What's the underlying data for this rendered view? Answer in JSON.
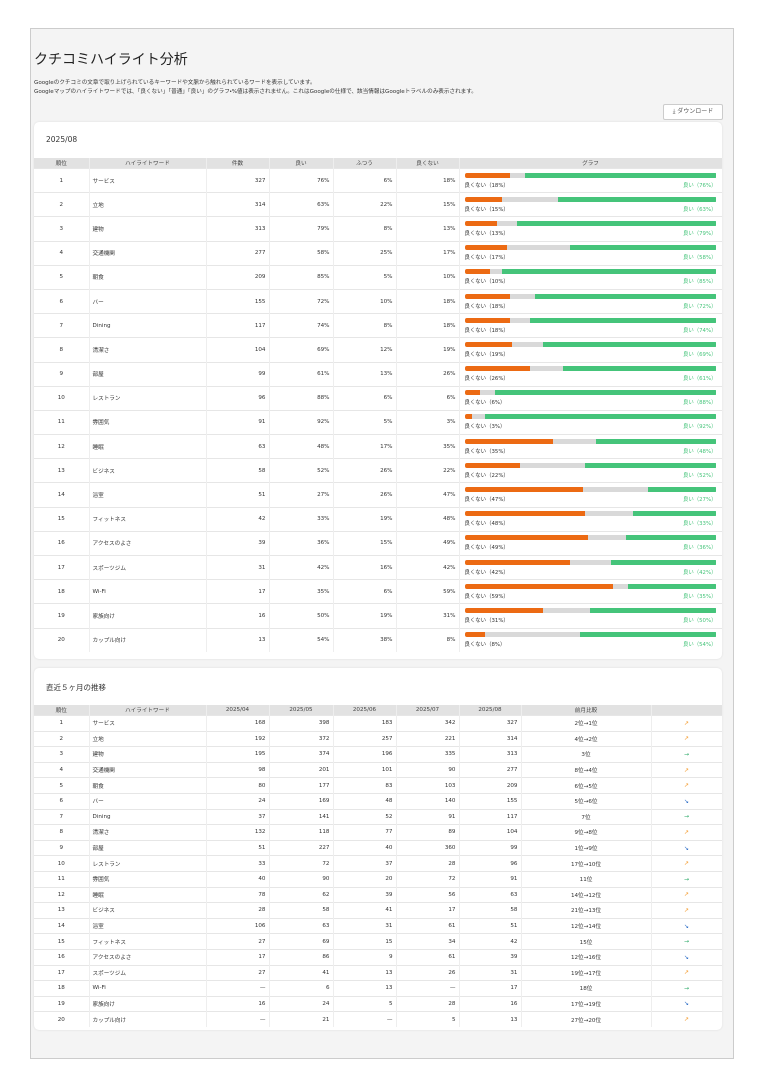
{
  "header": {
    "title": "クチコミハイライト分析",
    "desc": [
      "Googleのクチコミの文章で取り上げられているキーワードや文脈から触れられているワードを表示しています。",
      "Googleマップのハイライトワードでは、「良くない」「普通」「良い」のグラフ・%値は表示されません。これはGoogleの仕様で、該当情報はGoogleトラベルのみ表示されます。"
    ],
    "download": "ダウンロード"
  },
  "current": {
    "title": "2025/08",
    "columns": [
      "順位",
      "ハイライトワード",
      "件数",
      "良い",
      "ふつう",
      "良くない",
      "グラフ"
    ],
    "rows": [
      {
        "rank": 1,
        "word": "サービス",
        "count": 327,
        "good": {
          "value": 76,
          "label": "76%"
        },
        "normal": {
          "value": 6,
          "label": "6%"
        },
        "bad": {
          "value": 18,
          "label": "18%"
        },
        "bad_text": "良くない（18%）",
        "good_text": "良い（76%）"
      },
      {
        "rank": 2,
        "word": "立地",
        "count": 314,
        "good": {
          "value": 63,
          "label": "63%"
        },
        "normal": {
          "value": 22,
          "label": "22%"
        },
        "bad": {
          "value": 15,
          "label": "15%"
        },
        "bad_text": "良くない（15%）",
        "good_text": "良い（63%）"
      },
      {
        "rank": 3,
        "word": "建物",
        "count": 313,
        "good": {
          "value": 79,
          "label": "79%"
        },
        "normal": {
          "value": 8,
          "label": "8%"
        },
        "bad": {
          "value": 13,
          "label": "13%"
        },
        "bad_text": "良くない（13%）",
        "good_text": "良い（79%）"
      },
      {
        "rank": 4,
        "word": "交通機関",
        "count": 277,
        "good": {
          "value": 58,
          "label": "58%"
        },
        "normal": {
          "value": 25,
          "label": "25%"
        },
        "bad": {
          "value": 17,
          "label": "17%"
        },
        "bad_text": "良くない（17%）",
        "good_text": "良い（58%）"
      },
      {
        "rank": 5,
        "word": "朝食",
        "count": 209,
        "good": {
          "value": 85,
          "label": "85%"
        },
        "normal": {
          "value": 5,
          "label": "5%"
        },
        "bad": {
          "value": 10,
          "label": "10%"
        },
        "bad_text": "良くない（10%）",
        "good_text": "良い（85%）"
      },
      {
        "rank": 6,
        "word": "バー",
        "count": 155,
        "good": {
          "value": 72,
          "label": "72%"
        },
        "normal": {
          "value": 10,
          "label": "10%"
        },
        "bad": {
          "value": 18,
          "label": "18%"
        },
        "bad_text": "良くない（18%）",
        "good_text": "良い（72%）"
      },
      {
        "rank": 7,
        "word": "Dining",
        "count": 117,
        "good": {
          "value": 74,
          "label": "74%"
        },
        "normal": {
          "value": 8,
          "label": "8%"
        },
        "bad": {
          "value": 18,
          "label": "18%"
        },
        "bad_text": "良くない（18%）",
        "good_text": "良い（74%）"
      },
      {
        "rank": 8,
        "word": "清潔さ",
        "count": 104,
        "good": {
          "value": 69,
          "label": "69%"
        },
        "normal": {
          "value": 12,
          "label": "12%"
        },
        "bad": {
          "value": 19,
          "label": "19%"
        },
        "bad_text": "良くない（19%）",
        "good_text": "良い（69%）"
      },
      {
        "rank": 9,
        "word": "部屋",
        "count": 99,
        "good": {
          "value": 61,
          "label": "61%"
        },
        "normal": {
          "value": 13,
          "label": "13%"
        },
        "bad": {
          "value": 26,
          "label": "26%"
        },
        "bad_text": "良くない（26%）",
        "good_text": "良い（61%）"
      },
      {
        "rank": 10,
        "word": "レストラン",
        "count": 96,
        "good": {
          "value": 88,
          "label": "88%"
        },
        "normal": {
          "value": 6,
          "label": "6%"
        },
        "bad": {
          "value": 6,
          "label": "6%"
        },
        "bad_text": "良くない（6%）",
        "good_text": "良い（88%）"
      },
      {
        "rank": 11,
        "word": "雰囲気",
        "count": 91,
        "good": {
          "value": 92,
          "label": "92%"
        },
        "normal": {
          "value": 5,
          "label": "5%"
        },
        "bad": {
          "value": 3,
          "label": "3%"
        },
        "bad_text": "良くない（3%）",
        "good_text": "良い（92%）"
      },
      {
        "rank": 12,
        "word": "睡眠",
        "count": 63,
        "good": {
          "value": 48,
          "label": "48%"
        },
        "normal": {
          "value": 17,
          "label": "17%"
        },
        "bad": {
          "value": 35,
          "label": "35%"
        },
        "bad_text": "良くない（35%）",
        "good_text": "良い（48%）"
      },
      {
        "rank": 13,
        "word": "ビジネス",
        "count": 58,
        "good": {
          "value": 52,
          "label": "52%"
        },
        "normal": {
          "value": 26,
          "label": "26%"
        },
        "bad": {
          "value": 22,
          "label": "22%"
        },
        "bad_text": "良くない（22%）",
        "good_text": "良い（52%）"
      },
      {
        "rank": 14,
        "word": "浴室",
        "count": 51,
        "good": {
          "value": 27,
          "label": "27%"
        },
        "normal": {
          "value": 26,
          "label": "26%"
        },
        "bad": {
          "value": 47,
          "label": "47%"
        },
        "bad_text": "良くない（47%）",
        "good_text": "良い（27%）"
      },
      {
        "rank": 15,
        "word": "フィットネス",
        "count": 42,
        "good": {
          "value": 33,
          "label": "33%"
        },
        "normal": {
          "value": 19,
          "label": "19%"
        },
        "bad": {
          "value": 48,
          "label": "48%"
        },
        "bad_text": "良くない（48%）",
        "good_text": "良い（33%）"
      },
      {
        "rank": 16,
        "word": "アクセスのよさ",
        "count": 39,
        "good": {
          "value": 36,
          "label": "36%"
        },
        "normal": {
          "value": 15,
          "label": "15%"
        },
        "bad": {
          "value": 49,
          "label": "49%"
        },
        "bad_text": "良くない（49%）",
        "good_text": "良い（36%）"
      },
      {
        "rank": 17,
        "word": "スポーツジム",
        "count": 31,
        "good": {
          "value": 42,
          "label": "42%"
        },
        "normal": {
          "value": 16,
          "label": "16%"
        },
        "bad": {
          "value": 42,
          "label": "42%"
        },
        "bad_text": "良くない（42%）",
        "good_text": "良い（42%）"
      },
      {
        "rank": 18,
        "word": "Wi-Fi",
        "count": 17,
        "good": {
          "value": 35,
          "label": "35%"
        },
        "normal": {
          "value": 6,
          "label": "6%"
        },
        "bad": {
          "value": 59,
          "label": "59%"
        },
        "bad_text": "良くない（59%）",
        "good_text": "良い（35%）"
      },
      {
        "rank": 19,
        "word": "家族向け",
        "count": 16,
        "good": {
          "value": 50,
          "label": "50%"
        },
        "normal": {
          "value": 19,
          "label": "19%"
        },
        "bad": {
          "value": 31,
          "label": "31%"
        },
        "bad_text": "良くない（31%）",
        "good_text": "良い（50%）"
      },
      {
        "rank": 20,
        "word": "カップル向け",
        "count": 13,
        "good": {
          "value": 54,
          "label": "54%"
        },
        "normal": {
          "value": 38,
          "label": "38%"
        },
        "bad": {
          "value": 8,
          "label": "8%"
        },
        "bad_text": "良くない（8%）",
        "good_text": "良い（54%）"
      }
    ]
  },
  "trend": {
    "title": "直近５ヶ月の推移",
    "columns": [
      "順位",
      "ハイライトワード",
      "2025/04",
      "2025/05",
      "2025/06",
      "2025/07",
      "2025/08",
      "前月比較"
    ],
    "rows": [
      [
        1,
        "サービス",
        168,
        398,
        183,
        342,
        327,
        "2位→1位",
        "↗"
      ],
      [
        2,
        "立地",
        192,
        372,
        257,
        221,
        314,
        "4位→2位",
        "↗"
      ],
      [
        3,
        "建物",
        195,
        374,
        196,
        335,
        313,
        "3位",
        "→"
      ],
      [
        4,
        "交通機関",
        98,
        201,
        101,
        90,
        277,
        "8位→4位",
        "↗"
      ],
      [
        5,
        "朝食",
        80,
        177,
        83,
        103,
        209,
        "6位→5位",
        "↗"
      ],
      [
        6,
        "バー",
        24,
        169,
        48,
        140,
        155,
        "5位→6位",
        "↘"
      ],
      [
        7,
        "Dining",
        37,
        141,
        52,
        91,
        117,
        "7位",
        "→"
      ],
      [
        8,
        "清潔さ",
        132,
        118,
        77,
        89,
        104,
        "9位→8位",
        "↗"
      ],
      [
        9,
        "部屋",
        51,
        227,
        40,
        360,
        99,
        "1位→9位",
        "↘"
      ],
      [
        10,
        "レストラン",
        33,
        72,
        37,
        28,
        96,
        "17位→10位",
        "↗"
      ],
      [
        11,
        "雰囲気",
        40,
        90,
        20,
        72,
        91,
        "11位",
        "→"
      ],
      [
        12,
        "睡眠",
        78,
        62,
        39,
        56,
        63,
        "14位→12位",
        "↗"
      ],
      [
        13,
        "ビジネス",
        28,
        58,
        41,
        17,
        58,
        "21位→13位",
        "↗"
      ],
      [
        14,
        "浴室",
        106,
        63,
        31,
        61,
        51,
        "12位→14位",
        "↘"
      ],
      [
        15,
        "フィットネス",
        27,
        69,
        15,
        34,
        42,
        "15位",
        "→"
      ],
      [
        16,
        "アクセスのよさ",
        17,
        86,
        9,
        61,
        39,
        "12位→16位",
        "↘"
      ],
      [
        17,
        "スポーツジム",
        27,
        41,
        13,
        26,
        31,
        "19位→17位",
        "↗"
      ],
      [
        18,
        "Wi-Fi",
        "—",
        6,
        13,
        "—",
        17,
        "18位",
        "→"
      ],
      [
        19,
        "家族向け",
        16,
        24,
        5,
        28,
        16,
        "17位→19位",
        "↘"
      ],
      [
        20,
        "カップル向け",
        "—",
        21,
        "—",
        5,
        13,
        "27位→20位",
        "↗"
      ]
    ]
  }
}
